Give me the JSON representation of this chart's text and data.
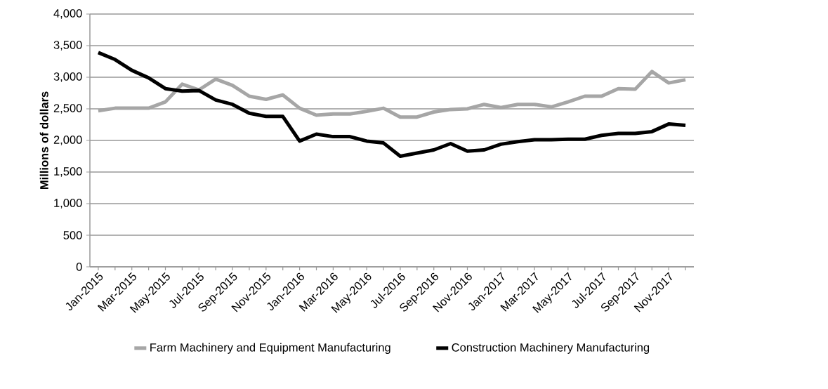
{
  "chart_data": {
    "type": "line",
    "ylabel": "Millions of dollars",
    "categories": [
      "Jan-2015",
      null,
      "Mar-2015",
      null,
      "May-2015",
      null,
      "Jul-2015",
      null,
      "Sep-2015",
      null,
      "Nov-2015",
      null,
      "Jan-2016",
      null,
      "Mar-2016",
      null,
      "May-2016",
      null,
      "Jul-2016",
      null,
      "Sep-2016",
      null,
      "Nov-2016",
      null,
      "Jan-2017",
      null,
      "Mar-2017",
      null,
      "May-2017",
      null,
      "Jul-2017",
      null,
      "Sep-2017",
      null,
      "Nov-2017",
      null
    ],
    "series": [
      {
        "name": "Farm Machinery and Equipment Manufacturing",
        "color": "#a6a6a6",
        "values": [
          2470,
          2510,
          2510,
          2510,
          2610,
          2890,
          2800,
          2970,
          2870,
          2700,
          2650,
          2720,
          2510,
          2400,
          2420,
          2420,
          2460,
          2510,
          2370,
          2370,
          2450,
          2490,
          2500,
          2570,
          2520,
          2570,
          2570,
          2530,
          2610,
          2700,
          2700,
          2820,
          2810,
          3090,
          2910,
          2960
        ]
      },
      {
        "name": "Construction Machinery Manufacturing",
        "color": "#000000",
        "values": [
          3390,
          3280,
          3110,
          2990,
          2820,
          2780,
          2790,
          2640,
          2570,
          2430,
          2380,
          2380,
          1990,
          2100,
          2060,
          2060,
          1990,
          1960,
          1750,
          1800,
          1850,
          1950,
          1830,
          1850,
          1940,
          1980,
          2010,
          2010,
          2020,
          2020,
          2080,
          2110,
          2110,
          2140,
          2260,
          2240
        ]
      }
    ],
    "ylim": [
      0,
      4000
    ],
    "yticks": [
      0,
      500,
      {
        "value": 1000,
        "label": "1,000"
      },
      {
        "value": 1500,
        "label": "1,500"
      },
      {
        "value": 2000,
        "label": "2,000"
      },
      {
        "value": 2500,
        "label": "2,500"
      },
      {
        "value": 3000,
        "label": "3,000"
      },
      {
        "value": 3500,
        "label": "3,500"
      },
      {
        "value": 4000,
        "label": "4,000"
      }
    ],
    "grid": "y",
    "legend": "bottom",
    "marker": "none",
    "line_style": "solid"
  }
}
